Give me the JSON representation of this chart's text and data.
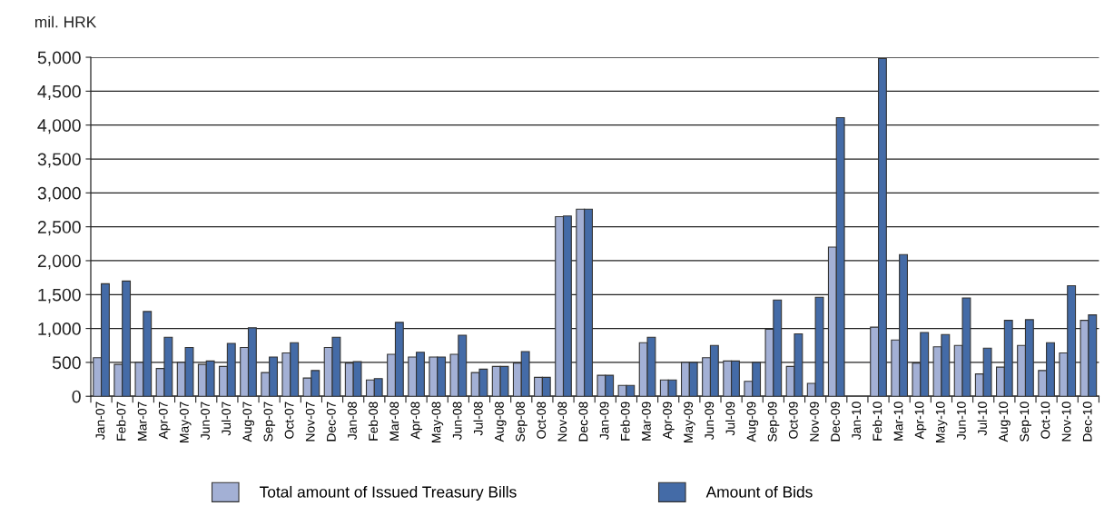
{
  "chart_data": {
    "type": "bar",
    "ylabel": "mil. HRK",
    "categories": [
      "Jan-07",
      "Feb-07",
      "Mar-07",
      "Apr-07",
      "May-07",
      "Jun-07",
      "Jul-07",
      "Aug-07",
      "Sep-07",
      "Oct-07",
      "Nov-07",
      "Dec-07",
      "Jan-08",
      "Feb-08",
      "Mar-08",
      "Apr-08",
      "May-08",
      "Jun-08",
      "Jul-08",
      "Aug-08",
      "Sep-08",
      "Oct-08",
      "Nov-08",
      "Dec-08",
      "Jan-09",
      "Feb-09",
      "Mar-09",
      "Apr-09",
      "May-09",
      "Jun-09",
      "Jul-09",
      "Aug-09",
      "Sep-09",
      "Oct-09",
      "Nov-09",
      "Dec-09",
      "Jan-10",
      "Feb-10",
      "Mar-10",
      "Apr-10",
      "May-10",
      "Jun-10",
      "Jul-10",
      "Aug-10",
      "Sep-10",
      "Oct-10",
      "Nov-10",
      "Dec-10"
    ],
    "series": [
      {
        "name": "Total amount of Issued Treasury Bills",
        "color": "#a3b0d5",
        "values": [
          570,
          470,
          500,
          410,
          500,
          470,
          440,
          720,
          350,
          640,
          270,
          720,
          490,
          240,
          620,
          580,
          580,
          620,
          350,
          440,
          490,
          280,
          2650,
          2760,
          310,
          160,
          790,
          240,
          500,
          570,
          520,
          220,
          990,
          440,
          190,
          2200,
          null,
          1020,
          830,
          490,
          730,
          750,
          330,
          430,
          750,
          380,
          640,
          1120
        ]
      },
      {
        "name": "Amount of Bids",
        "color": "#446ba7",
        "values": [
          1660,
          1700,
          1250,
          870,
          720,
          520,
          780,
          1010,
          580,
          790,
          380,
          870,
          510,
          260,
          1090,
          650,
          580,
          900,
          400,
          440,
          660,
          280,
          2660,
          2760,
          310,
          160,
          870,
          240,
          500,
          750,
          520,
          500,
          1420,
          920,
          1460,
          4110,
          null,
          4980,
          2090,
          940,
          910,
          1450,
          710,
          1120,
          1130,
          790,
          1630,
          1200
        ]
      }
    ],
    "ylim": [
      0,
      5000
    ],
    "yticks": [
      0,
      500,
      {
        "value": 1000,
        "label": "1,000"
      },
      {
        "value": 1500,
        "label": "1,500"
      },
      {
        "value": 2000,
        "label": "2,000"
      },
      {
        "value": 2500,
        "label": "2,500"
      },
      {
        "value": 3000,
        "label": "3,000"
      },
      {
        "value": 3500,
        "label": "3,500"
      },
      {
        "value": 4000,
        "label": "4,000"
      },
      {
        "value": 4500,
        "label": "4,500"
      },
      {
        "value": 5000,
        "label": "5,000"
      }
    ],
    "grid": "y",
    "legend": "bottom"
  }
}
